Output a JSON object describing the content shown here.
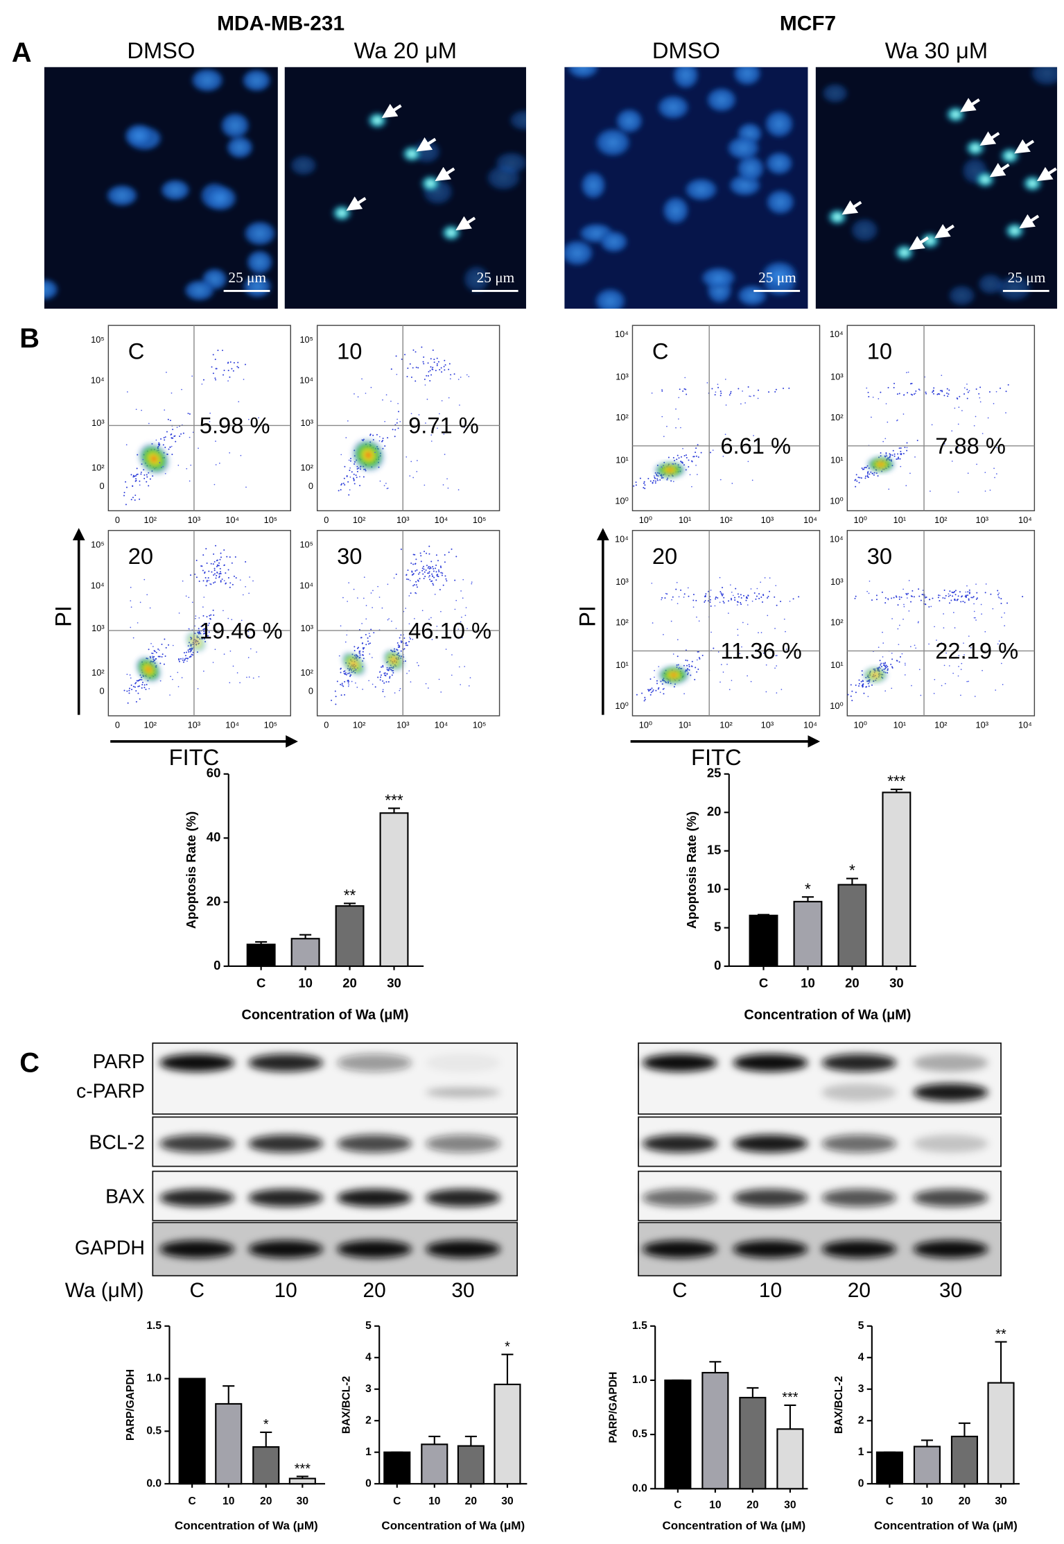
{
  "panel_labels": [
    "A",
    "B",
    "C"
  ],
  "cell_lines": [
    "MDA-MB-231",
    "MCF7"
  ],
  "microscopy": {
    "images": [
      {
        "title": "DMSO",
        "scale_bar": "25 μm"
      },
      {
        "title": "Wa 20 μM",
        "scale_bar": "25 μm"
      },
      {
        "title": "DMSO",
        "scale_bar": "25 μm"
      },
      {
        "title": "Wa 30 μM",
        "scale_bar": "25 μm"
      }
    ]
  },
  "flow": {
    "groups": [
      {
        "y_axis": "PI",
        "x_axis": "FITC",
        "yticks": [
          "10⁵",
          "10⁴",
          "10³",
          "10²",
          "0"
        ],
        "xticks": [
          "0",
          "10²",
          "10³",
          "10⁴",
          "10⁵"
        ],
        "plots": [
          {
            "label": "C",
            "percent": "5.98 %"
          },
          {
            "label": "10",
            "percent": "9.71 %"
          },
          {
            "label": "20",
            "percent": "19.46 %"
          },
          {
            "label": "30",
            "percent": "46.10 %"
          }
        ]
      },
      {
        "y_axis": "PI",
        "x_axis": "FITC",
        "yticks": [
          "10⁴",
          "10³",
          "10²",
          "10¹",
          "10⁰"
        ],
        "xticks": [
          "10⁰",
          "10¹",
          "10²",
          "10³",
          "10⁴"
        ],
        "plots": [
          {
            "label": "C",
            "percent": "6.61 %"
          },
          {
            "label": "10",
            "percent": "7.88 %"
          },
          {
            "label": "20",
            "percent": "11.36 %"
          },
          {
            "label": "30",
            "percent": "22.19 %"
          }
        ]
      }
    ]
  },
  "western": {
    "groups": [
      {
        "proteins": [
          "PARP",
          "c-PARP",
          "BCL-2",
          "BAX",
          "GAPDH"
        ],
        "dose_label": "Wa (μM)",
        "lanes": [
          "C",
          "10",
          "20",
          "30"
        ]
      },
      {
        "lanes": [
          "C",
          "10",
          "20",
          "30"
        ]
      }
    ]
  },
  "chart_data": [
    {
      "type": "bar",
      "y_label": "Apoptosis Rate (%)",
      "x_label": "Concentration of Wa (μM)",
      "categories": [
        "C",
        "10",
        "20",
        "30"
      ],
      "values": [
        6.8,
        8.6,
        18.8,
        47.8
      ],
      "errors": [
        0.8,
        1.2,
        0.8,
        1.5
      ],
      "annotations": [
        null,
        null,
        "**",
        "***"
      ],
      "colors": [
        "#000000",
        "#a3a3ab",
        "#6e6e6e",
        "#dcdcdc"
      ],
      "ylim": [
        0,
        60
      ],
      "yticks": [
        0,
        20,
        40,
        60
      ]
    },
    {
      "type": "bar",
      "y_label": "Apoptosis Rate (%)",
      "x_label": "Concentration of Wa (μM)",
      "categories": [
        "C",
        "10",
        "20",
        "30"
      ],
      "values": [
        6.6,
        8.4,
        10.6,
        22.6
      ],
      "errors": [
        0.1,
        0.6,
        0.8,
        0.4
      ],
      "annotations": [
        null,
        "*",
        "*",
        "***"
      ],
      "colors": [
        "#000000",
        "#a3a3ab",
        "#6e6e6e",
        "#dcdcdc"
      ],
      "ylim": [
        0,
        25
      ],
      "yticks": [
        0,
        5,
        10,
        15,
        20,
        25
      ]
    },
    {
      "type": "bar",
      "y_label": "PARP/GAPDH",
      "x_label": "Concentration of Wa (μM)",
      "categories": [
        "C",
        "10",
        "20",
        "30"
      ],
      "values": [
        1.0,
        0.76,
        0.35,
        0.05
      ],
      "errors": [
        0,
        0.17,
        0.14,
        0.02
      ],
      "annotations": [
        null,
        null,
        "*",
        "***"
      ],
      "colors": [
        "#000000",
        "#a3a3ab",
        "#6e6e6e",
        "#dcdcdc"
      ],
      "ylim": [
        0,
        1.5
      ],
      "yticks": [
        {
          "value": 0,
          "label": "0.0"
        },
        0.5,
        {
          "value": 1,
          "label": "1.0"
        },
        1.5
      ]
    },
    {
      "type": "bar",
      "y_label": "BAX/BCL-2",
      "x_label": "Concentration of Wa (μM)",
      "categories": [
        "C",
        "10",
        "20",
        "30"
      ],
      "values": [
        1.0,
        1.25,
        1.2,
        3.15
      ],
      "errors": [
        0,
        0.25,
        0.3,
        0.95
      ],
      "annotations": [
        null,
        null,
        null,
        "*"
      ],
      "colors": [
        "#000000",
        "#a3a3ab",
        "#6e6e6e",
        "#dcdcdc"
      ],
      "ylim": [
        0,
        5
      ],
      "yticks": [
        0,
        1,
        2,
        3,
        4,
        5
      ]
    },
    {
      "type": "bar",
      "y_label": "PARP/GAPDH",
      "x_label": "Concentration of Wa (μM)",
      "categories": [
        "C",
        "10",
        "20",
        "30"
      ],
      "values": [
        1.0,
        1.07,
        0.84,
        0.55
      ],
      "errors": [
        0,
        0.1,
        0.09,
        0.22
      ],
      "annotations": [
        null,
        null,
        null,
        "***"
      ],
      "colors": [
        "#000000",
        "#a3a3ab",
        "#6e6e6e",
        "#dcdcdc"
      ],
      "ylim": [
        0,
        1.5
      ],
      "yticks": [
        {
          "value": 0,
          "label": "0.0"
        },
        0.5,
        {
          "value": 1,
          "label": "1.0"
        },
        1.5
      ]
    },
    {
      "type": "bar",
      "y_label": "BAX/BCL-2",
      "x_label": "Concentration of Wa (μM)",
      "categories": [
        "C",
        "10",
        "20",
        "30"
      ],
      "values": [
        1.0,
        1.18,
        1.5,
        3.2
      ],
      "errors": [
        0,
        0.2,
        0.42,
        1.3
      ],
      "annotations": [
        null,
        null,
        null,
        "**"
      ],
      "colors": [
        "#000000",
        "#a3a3ab",
        "#6e6e6e",
        "#dcdcdc"
      ],
      "ylim": [
        0,
        5
      ],
      "yticks": [
        0,
        1,
        2,
        3,
        4,
        5
      ]
    }
  ]
}
